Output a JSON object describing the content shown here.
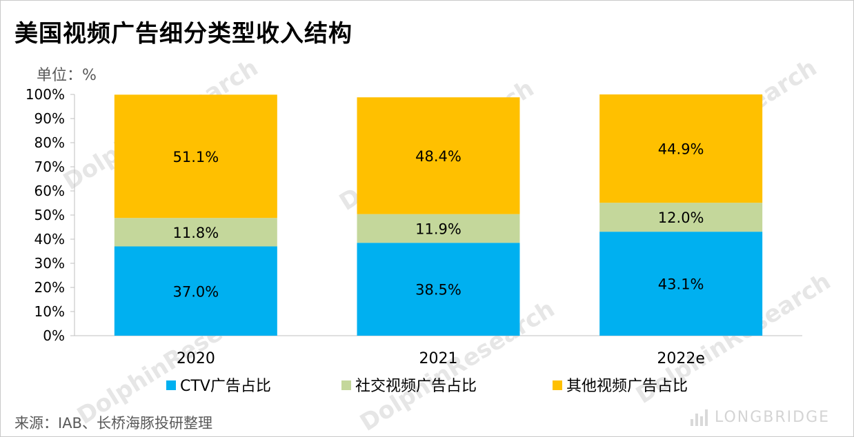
{
  "header": {
    "title": "美国视频广告细分类型收入结构",
    "unit": "单位：%"
  },
  "footer": {
    "source": "来源：IAB、长桥海豚投研整理",
    "brand": "LONGBRIDGE"
  },
  "watermark": {
    "text": "DolphinResearch",
    "sub": "LONGBRIDGE"
  },
  "colors": {
    "ctv": "#00B0F0",
    "social": "#C4D79B",
    "other": "#FFC000",
    "axis": "#BFBFBF"
  },
  "chart_data": {
    "type": "bar",
    "stacked": true,
    "categories": [
      "2020",
      "2021",
      "2022e"
    ],
    "series": [
      {
        "name": "CTV广告占比",
        "values": [
          37.0,
          38.5,
          43.1
        ],
        "labels": [
          "37.0%",
          "38.5%",
          "43.1%"
        ],
        "color": "#00B0F0"
      },
      {
        "name": "社交视频广告占比",
        "values": [
          11.8,
          11.9,
          12.0
        ],
        "labels": [
          "11.8%",
          "11.9%",
          "12.0%"
        ],
        "color": "#C4D79B"
      },
      {
        "name": "其他视频广告占比",
        "values": [
          51.1,
          48.4,
          44.9
        ],
        "labels": [
          "51.1%",
          "48.4%",
          "44.9%"
        ],
        "color": "#FFC000"
      }
    ],
    "ylim": [
      0,
      100
    ],
    "yticks": [
      "0%",
      "10%",
      "20%",
      "30%",
      "40%",
      "50%",
      "60%",
      "70%",
      "80%",
      "90%",
      "100%"
    ],
    "grid": false,
    "legend_position": "bottom"
  }
}
